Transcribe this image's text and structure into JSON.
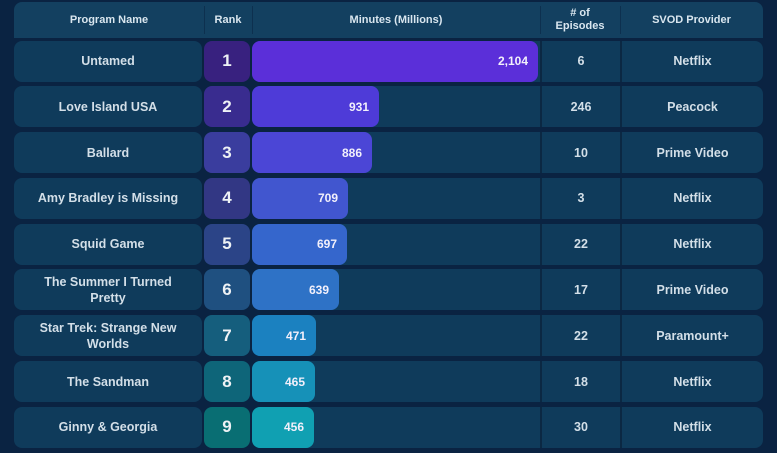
{
  "page": {
    "background": "#0a2342",
    "row_background": "#0f3b5b",
    "header_background": "#134060"
  },
  "table": {
    "headers": {
      "program": "Program Name",
      "rank": "Rank",
      "minutes": "Minutes (Millions)",
      "episodes": "# of Episodes",
      "provider": "SVOD Provider"
    },
    "rows": [
      {
        "program": "Untamed",
        "rank": "1",
        "minutes": 2104,
        "minutes_label": "2,104",
        "episodes": "6",
        "provider": "Netflix",
        "rank_color": "#38217f",
        "bar_color": "#5b2fd9"
      },
      {
        "program": "Love Island USA",
        "rank": "2",
        "minutes": 931,
        "minutes_label": "931",
        "episodes": "246",
        "provider": "Peacock",
        "rank_color": "#392c8f",
        "bar_color": "#4e3bd8"
      },
      {
        "program": "Ballard",
        "rank": "3",
        "minutes": 886,
        "minutes_label": "886",
        "episodes": "10",
        "provider": "Prime Video",
        "rank_color": "#3a3d9e",
        "bar_color": "#4b46d6"
      },
      {
        "program": "Amy Bradley is Missing",
        "rank": "4",
        "minutes": 709,
        "minutes_label": "709",
        "episodes": "3",
        "provider": "Netflix",
        "rank_color": "#323784",
        "bar_color": "#4156cf"
      },
      {
        "program": "Squid Game",
        "rank": "5",
        "minutes": 697,
        "minutes_label": "697",
        "episodes": "22",
        "provider": "Netflix",
        "rank_color": "#2b4487",
        "bar_color": "#3566cc"
      },
      {
        "program": "The Summer I Turned Pretty",
        "rank": "6",
        "minutes": 639,
        "minutes_label": "639",
        "episodes": "17",
        "provider": "Prime Video",
        "rank_color": "#1f5080",
        "bar_color": "#2e72c6"
      },
      {
        "program": "Star Trek: Strange New Worlds",
        "rank": "7",
        "minutes": 471,
        "minutes_label": "471",
        "episodes": "22",
        "provider": "Paramount+",
        "rank_color": "#155e7d",
        "bar_color": "#1b81c0"
      },
      {
        "program": "The Sandman",
        "rank": "8",
        "minutes": 465,
        "minutes_label": "465",
        "episodes": "18",
        "provider": "Netflix",
        "rank_color": "#0e6579",
        "bar_color": "#1691b8"
      },
      {
        "program": "Ginny & Georgia",
        "rank": "9",
        "minutes": 456,
        "minutes_label": "456",
        "episodes": "30",
        "provider": "Netflix",
        "rank_color": "#096e73",
        "bar_color": "#10a0b2"
      }
    ]
  },
  "chart_data": {
    "type": "bar",
    "orientation": "horizontal",
    "title": "",
    "xlabel": "Minutes (Millions)",
    "ylabel": "Program Name",
    "categories": [
      "Untamed",
      "Love Island USA",
      "Ballard",
      "Amy Bradley is Missing",
      "Squid Game",
      "The Summer I Turned Pretty",
      "Star Trek: Strange New Worlds",
      "The Sandman",
      "Ginny & Georgia"
    ],
    "values": [
      2104,
      931,
      886,
      709,
      697,
      639,
      471,
      465,
      456
    ],
    "value_labels": [
      "2,104",
      "931",
      "886",
      "709",
      "697",
      "639",
      "471",
      "465",
      "456"
    ],
    "xlim": [
      0,
      2104
    ],
    "grid": false,
    "legend": "none",
    "bar_colors": [
      "#5b2fd9",
      "#4e3bd8",
      "#4b46d6",
      "#4156cf",
      "#3566cc",
      "#2e72c6",
      "#1b81c0",
      "#1691b8",
      "#10a0b2"
    ],
    "extra_columns": {
      "rank": [
        "1",
        "2",
        "3",
        "4",
        "5",
        "6",
        "7",
        "8",
        "9"
      ],
      "episodes": [
        "6",
        "246",
        "10",
        "3",
        "22",
        "17",
        "22",
        "18",
        "30"
      ],
      "svod_provider": [
        "Netflix",
        "Peacock",
        "Prime Video",
        "Netflix",
        "Netflix",
        "Prime Video",
        "Paramount+",
        "Netflix",
        "Netflix"
      ]
    }
  }
}
